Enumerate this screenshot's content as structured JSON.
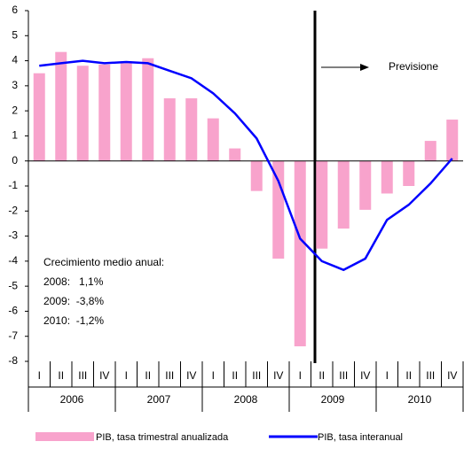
{
  "chart_data": {
    "type": "bar_line",
    "categories": [
      "I",
      "II",
      "III",
      "IV",
      "I",
      "II",
      "III",
      "IV",
      "I",
      "II",
      "III",
      "IV",
      "I",
      "II",
      "III",
      "IV",
      "I",
      "II",
      "III",
      "IV"
    ],
    "x_groups": [
      "2006",
      "2007",
      "2008",
      "2009",
      "2010"
    ],
    "series": [
      {
        "name": "PIB, tasa trimestral anualizada",
        "type": "bar",
        "color": "#f8a3cc",
        "values": [
          3.5,
          4.35,
          3.8,
          3.85,
          3.9,
          4.1,
          2.5,
          2.5,
          1.7,
          0.5,
          -1.2,
          -3.9,
          -7.4,
          -3.5,
          -2.7,
          -1.95,
          -1.3,
          -1.0,
          0.8,
          1.65
        ]
      },
      {
        "name": "PIB, tasa interanual",
        "type": "line",
        "color": "#0000ff",
        "values": [
          3.8,
          3.9,
          4.0,
          3.9,
          3.95,
          3.9,
          3.6,
          3.3,
          2.7,
          1.9,
          0.9,
          -0.8,
          -3.1,
          -4.0,
          -4.35,
          -3.9,
          -2.35,
          -1.75,
          -0.9,
          0.1
        ]
      }
    ],
    "ylim": [
      -8,
      6
    ],
    "yticks": [
      -8,
      -7,
      -6,
      -5,
      -4,
      -3,
      -2,
      -1,
      0,
      1,
      2,
      3,
      4,
      5,
      6
    ],
    "annotations": {
      "forecast": "Previsione",
      "box": [
        "Crecimiento medio anual:",
        "2008:   1,1%",
        "2009:  -3,8%",
        "2010:  -1,2%"
      ]
    }
  }
}
